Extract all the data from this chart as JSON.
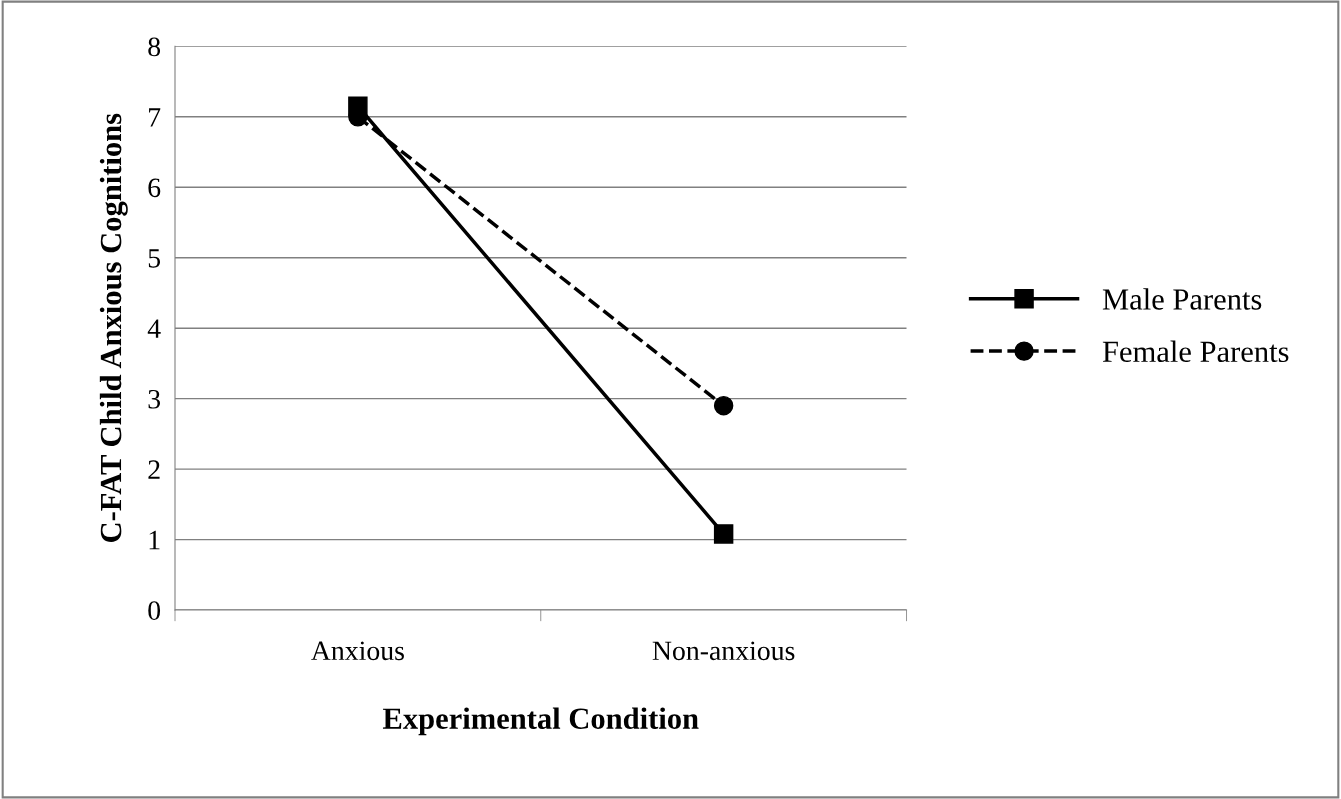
{
  "chart_data": {
    "type": "line",
    "xlabel": "Experimental Condition",
    "ylabel": "C-FAT Child Anxious Cognitions",
    "categories": [
      "Anxious",
      "Non-anxious"
    ],
    "series": [
      {
        "name": "Male Parents",
        "color": "#000000",
        "values": [
          7.15,
          1.08
        ],
        "marker": "square",
        "line_style": "solid"
      },
      {
        "name": "Female Parents",
        "color": "#000000",
        "values": [
          7.0,
          2.9
        ],
        "marker": "circle",
        "line_style": "dashed"
      }
    ],
    "ylim": [
      0,
      8
    ],
    "yticks": [
      0,
      1,
      2,
      3,
      4,
      5,
      6,
      7,
      8
    ],
    "grid": "y",
    "legend": "right"
  }
}
